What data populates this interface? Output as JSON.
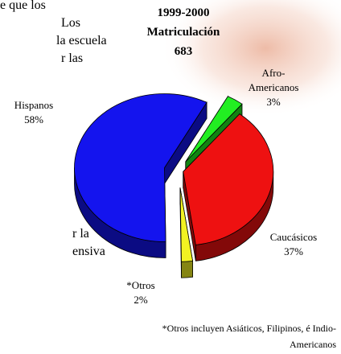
{
  "background_text": [
    "e que los",
    "Los",
    "la escuela",
    "r las",
    "r la",
    "ensiva"
  ],
  "chart_data": {
    "type": "pie",
    "title": "1999-2000",
    "subtitle": "Matriculación",
    "total": 683,
    "categories": [
      "Afro-Americanos",
      "Caucásicos",
      "*Otros",
      "Hispanos"
    ],
    "values": [
      3,
      37,
      2,
      58
    ],
    "value_labels": [
      "3%",
      "37%",
      "2%",
      "58%"
    ],
    "colors": [
      "#22ee22",
      "#ee1111",
      "#f2f222",
      "#1414ee"
    ],
    "note": "*Otros incluyen Asiáticos, Filipinos, é Indio-Americanos"
  }
}
